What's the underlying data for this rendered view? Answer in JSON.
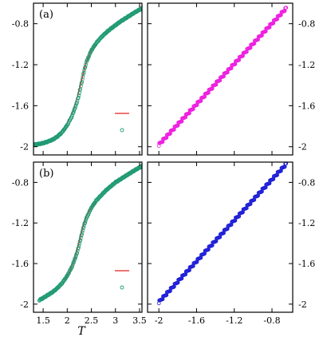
{
  "chart_data": [
    {
      "type": "line",
      "panel": "(a)",
      "position": "top-left",
      "xlabel": "",
      "ylabel": "",
      "xlim": [
        1.3,
        3.55
      ],
      "ylim": [
        -2.08,
        -0.6
      ],
      "xticks": [
        1.5,
        2,
        2.5,
        3,
        3.5
      ],
      "xtick_labels_shown": false,
      "yticks": [
        -0.8,
        -1.2,
        -1.6,
        -2
      ],
      "ytick_labels": [
        "-0.8",
        "-1.2",
        "-1.6",
        "-2"
      ],
      "yticks_side": "left",
      "legend": "right",
      "series": [
        {
          "style": "line",
          "color": "#e8201e",
          "x": [
            1.3,
            1.5,
            1.7,
            1.9,
            2.0,
            2.1,
            2.2,
            2.3,
            2.35,
            2.4,
            2.5,
            2.6
          ],
          "y": [
            -1.98,
            -1.96,
            -1.92,
            -1.84,
            -1.77,
            -1.67,
            -1.53,
            -1.35,
            -1.25,
            -1.17,
            -1.06,
            -1.0
          ]
        },
        {
          "style": "markers",
          "color": "#1f9a73",
          "x": [
            1.3,
            1.4,
            1.5,
            1.6,
            1.7,
            1.8,
            1.9,
            2.0,
            2.1,
            2.2,
            2.25,
            2.3,
            2.35,
            2.4,
            2.5,
            2.6,
            2.7,
            2.8,
            2.9,
            3.0,
            3.1,
            3.2,
            3.3,
            3.4,
            3.55
          ],
          "y": [
            -1.98,
            -1.975,
            -1.965,
            -1.95,
            -1.93,
            -1.9,
            -1.855,
            -1.79,
            -1.7,
            -1.57,
            -1.48,
            -1.37,
            -1.26,
            -1.17,
            -1.06,
            -0.99,
            -0.935,
            -0.89,
            -0.85,
            -0.815,
            -0.78,
            -0.75,
            -0.72,
            -0.69,
            -0.65
          ]
        }
      ]
    },
    {
      "type": "scatter",
      "position": "top-right",
      "xlabel": "",
      "ylabel": "",
      "xlim": [
        -2.12,
        -0.58
      ],
      "ylim": [
        -2.08,
        -0.6
      ],
      "xticks": [
        -2,
        -1.6,
        -1.2,
        -0.8
      ],
      "xtick_labels_shown": false,
      "yticks": [
        -0.8,
        -1.2,
        -1.6,
        -2
      ],
      "ytick_labels": [
        "-0.8",
        "-1.2",
        "-1.6",
        "-2"
      ],
      "yticks_side": "right",
      "series": [
        {
          "color": "#ee1fe0",
          "x": [
            -2.0,
            -0.65
          ],
          "y": [
            -1.98,
            -0.65
          ],
          "style": "dense-diagonal"
        }
      ]
    },
    {
      "type": "line",
      "panel": "(b)",
      "position": "bottom-left",
      "xlabel": "T",
      "ylabel": "",
      "xlim": [
        1.3,
        3.55
      ],
      "ylim": [
        -2.08,
        -0.6
      ],
      "xticks": [
        1.5,
        2,
        2.5,
        3,
        3.5
      ],
      "xtick_labels": [
        "1.5",
        "2",
        "2.5",
        "3",
        "3.5"
      ],
      "yticks": [
        -0.8,
        -1.2,
        -1.6,
        -2
      ],
      "ytick_labels": [
        "-0.8",
        "-1.2",
        "-1.6",
        "-2"
      ],
      "yticks_side": "left",
      "legend": "right",
      "series": [
        {
          "style": "line",
          "color": "#e8201e",
          "x": [
            1.95,
            2.05,
            2.15,
            2.25,
            2.3,
            2.35,
            2.4,
            2.5,
            2.6
          ],
          "y": [
            -1.76,
            -1.68,
            -1.56,
            -1.38,
            -1.28,
            -1.2,
            -1.13,
            -1.05,
            -0.99
          ]
        },
        {
          "style": "markers",
          "color": "#1f9a73",
          "x": [
            1.42,
            1.5,
            1.6,
            1.7,
            1.8,
            1.9,
            2.0,
            2.1,
            2.2,
            2.25,
            2.3,
            2.35,
            2.4,
            2.5,
            2.6,
            2.7,
            2.8,
            2.9,
            3.0,
            3.1,
            3.2,
            3.3,
            3.4,
            3.55
          ],
          "y": [
            -1.96,
            -1.94,
            -1.91,
            -1.88,
            -1.84,
            -1.79,
            -1.72,
            -1.63,
            -1.5,
            -1.41,
            -1.31,
            -1.22,
            -1.15,
            -1.05,
            -0.98,
            -0.93,
            -0.88,
            -0.84,
            -0.8,
            -0.77,
            -0.74,
            -0.71,
            -0.68,
            -0.64
          ]
        }
      ]
    },
    {
      "type": "scatter",
      "position": "bottom-right",
      "xlabel": "",
      "ylabel": "",
      "xlim": [
        -2.12,
        -0.58
      ],
      "ylim": [
        -2.08,
        -0.6
      ],
      "xticks": [
        -2,
        -1.6,
        -1.2,
        -0.8
      ],
      "xtick_labels": [
        "-2",
        "-1.6",
        "-1.2",
        "-0.8"
      ],
      "yticks": [
        -0.8,
        -1.2,
        -1.6,
        -2
      ],
      "ytick_labels": [
        "-0.8",
        "-1.2",
        "-1.6",
        "-2"
      ],
      "yticks_side": "right",
      "series": [
        {
          "color": "#1f1fd6",
          "x": [
            -2.0,
            -0.65
          ],
          "y": [
            -1.98,
            -0.62
          ],
          "style": "dense-diagonal"
        }
      ]
    }
  ]
}
